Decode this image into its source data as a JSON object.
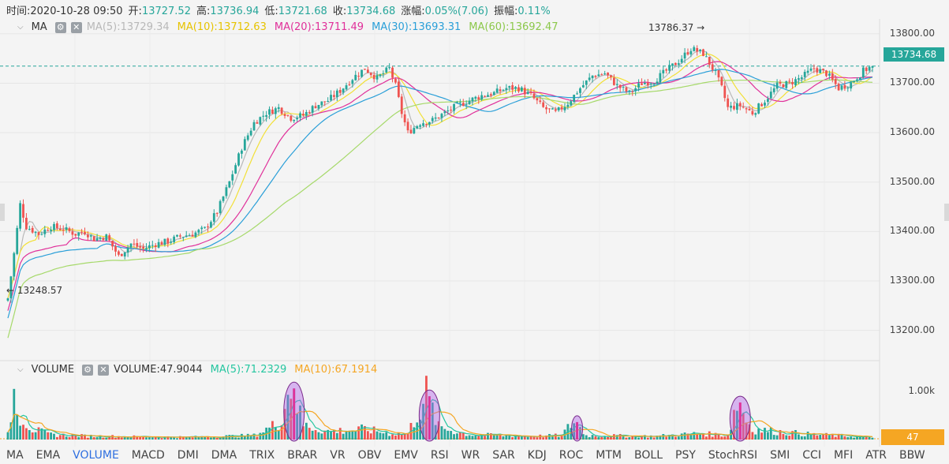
{
  "header": {
    "time_label": "时间:",
    "time": "2020-10-28 09:50",
    "open_label": "开:",
    "open": "13727.52",
    "high_label": "高:",
    "high": "13736.94",
    "low_label": "低:",
    "low": "13721.68",
    "close_label": "收:",
    "close": "13734.68",
    "change_label": "涨幅:",
    "change": "0.05%(7.06)",
    "amplitude_label": "振幅:",
    "amplitude": "0.11%"
  },
  "main_legend": {
    "name": "MA",
    "items": [
      {
        "text": "MA(5):13729.34",
        "color": "#b8b8b8"
      },
      {
        "text": "MA(10):13712.63",
        "color": "#f2e036"
      },
      {
        "text": "MA(20):13711.49",
        "color": "#e0309a"
      },
      {
        "text": "MA(30):13693.31",
        "color": "#2a9fd8"
      },
      {
        "text": "MA(60):13692.47",
        "color": "#a6d96a"
      }
    ]
  },
  "volume_legend": {
    "name": "VOLUME",
    "items": [
      {
        "text": "VOLUME:47.9044",
        "color": "#333333"
      },
      {
        "text": "MA(5):71.2329",
        "color": "#26c6a0"
      },
      {
        "text": "MA(10):67.1914",
        "color": "#f5a623"
      }
    ]
  },
  "y_axis": {
    "ticks": [
      "13800.00",
      "13700.00",
      "13600.00",
      "13500.00",
      "13400.00",
      "13300.00",
      "13200.00"
    ],
    "tick_values": [
      13800,
      13700,
      13600,
      13500,
      13400,
      13300,
      13200
    ]
  },
  "volume_axis": {
    "tick": "1.00k"
  },
  "current_price": "13734.68",
  "current_volume": "47",
  "markers": {
    "high": "13786.37 →",
    "low": "← 13248.57"
  },
  "tabs": [
    "MA",
    "EMA",
    "VOLUME",
    "MACD",
    "DMI",
    "DMA",
    "TRIX",
    "BRAR",
    "VR",
    "OBV",
    "EMV",
    "RSI",
    "WR",
    "SAR",
    "KDJ",
    "ROC",
    "MTM",
    "BOLL",
    "PSY",
    "StochRSI",
    "SMI",
    "CCI",
    "MFI",
    "ATR",
    "BBW"
  ],
  "active_tab": "VOLUME",
  "colors": {
    "up": "#26a69a",
    "down": "#ef5350",
    "highlight": "#b266e8"
  },
  "chart_data": {
    "type": "candlestick",
    "title": "",
    "ylim": [
      13150,
      13830
    ],
    "price_anchors": [
      [
        0,
        13265
      ],
      [
        2,
        13355
      ],
      [
        4,
        13455
      ],
      [
        6,
        13410
      ],
      [
        10,
        13395
      ],
      [
        14,
        13410
      ],
      [
        18,
        13405
      ],
      [
        22,
        13395
      ],
      [
        25,
        13400
      ],
      [
        28,
        13385
      ],
      [
        32,
        13390
      ],
      [
        36,
        13350
      ],
      [
        40,
        13375
      ],
      [
        44,
        13365
      ],
      [
        48,
        13375
      ],
      [
        52,
        13380
      ],
      [
        56,
        13390
      ],
      [
        60,
        13395
      ],
      [
        64,
        13405
      ],
      [
        68,
        13440
      ],
      [
        72,
        13500
      ],
      [
        76,
        13570
      ],
      [
        80,
        13620
      ],
      [
        84,
        13640
      ],
      [
        88,
        13650
      ],
      [
        92,
        13630
      ],
      [
        96,
        13635
      ],
      [
        100,
        13655
      ],
      [
        104,
        13665
      ],
      [
        108,
        13685
      ],
      [
        112,
        13710
      ],
      [
        116,
        13730
      ],
      [
        120,
        13710
      ],
      [
        124,
        13730
      ],
      [
        126,
        13695
      ],
      [
        128,
        13640
      ],
      [
        130,
        13600
      ],
      [
        134,
        13620
      ],
      [
        138,
        13625
      ],
      [
        142,
        13640
      ],
      [
        146,
        13655
      ],
      [
        150,
        13665
      ],
      [
        154,
        13675
      ],
      [
        158,
        13680
      ],
      [
        162,
        13690
      ],
      [
        166,
        13690
      ],
      [
        170,
        13675
      ],
      [
        174,
        13650
      ],
      [
        178,
        13640
      ],
      [
        182,
        13660
      ],
      [
        186,
        13690
      ],
      [
        190,
        13715
      ],
      [
        194,
        13720
      ],
      [
        198,
        13695
      ],
      [
        202,
        13680
      ],
      [
        206,
        13700
      ],
      [
        210,
        13705
      ],
      [
        214,
        13725
      ],
      [
        218,
        13745
      ],
      [
        222,
        13770
      ],
      [
        226,
        13760
      ],
      [
        230,
        13720
      ],
      [
        232,
        13690
      ],
      [
        234,
        13650
      ],
      [
        238,
        13655
      ],
      [
        242,
        13640
      ],
      [
        246,
        13665
      ],
      [
        250,
        13695
      ],
      [
        254,
        13700
      ],
      [
        258,
        13712
      ],
      [
        262,
        13730
      ],
      [
        266,
        13720
      ],
      [
        270,
        13690
      ],
      [
        274,
        13700
      ],
      [
        278,
        13725
      ],
      [
        281,
        13734.68
      ]
    ],
    "volume_anchors": [
      [
        0,
        120
      ],
      [
        2,
        1150
      ],
      [
        4,
        600
      ],
      [
        8,
        250
      ],
      [
        14,
        120
      ],
      [
        24,
        90
      ],
      [
        40,
        70
      ],
      [
        60,
        60
      ],
      [
        80,
        100
      ],
      [
        88,
        400
      ],
      [
        92,
        1300
      ],
      [
        96,
        350
      ],
      [
        104,
        200
      ],
      [
        116,
        250
      ],
      [
        124,
        150
      ],
      [
        130,
        150
      ],
      [
        136,
        1100
      ],
      [
        140,
        300
      ],
      [
        150,
        120
      ],
      [
        170,
        80
      ],
      [
        180,
        100
      ],
      [
        184,
        450
      ],
      [
        188,
        100
      ],
      [
        210,
        80
      ],
      [
        225,
        150
      ],
      [
        234,
        100
      ],
      [
        237,
        900
      ],
      [
        242,
        250
      ],
      [
        252,
        180
      ],
      [
        262,
        120
      ],
      [
        272,
        90
      ],
      [
        281,
        48
      ]
    ],
    "volume_max": 1500,
    "highlighted_indices": [
      93,
      137,
      185,
      238
    ]
  }
}
